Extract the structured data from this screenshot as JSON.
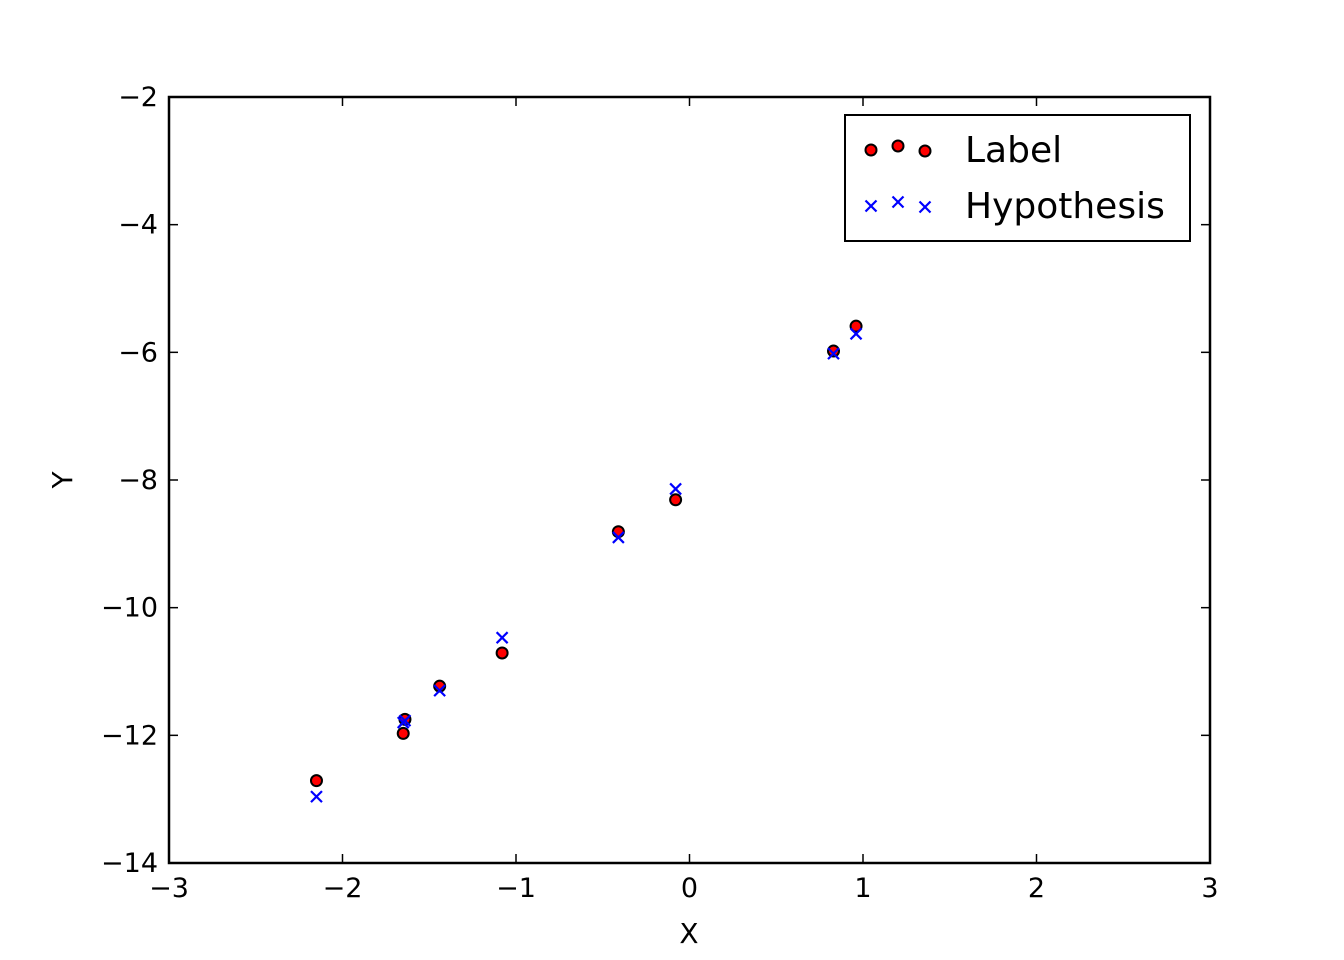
{
  "chart_data": {
    "type": "scatter",
    "xlabel": "X",
    "ylabel": "Y",
    "xlim": [
      -3,
      3
    ],
    "ylim": [
      -14,
      -2
    ],
    "xticks": [
      -3,
      -2,
      -1,
      0,
      1,
      2,
      3
    ],
    "yticks": [
      -14,
      -12,
      -10,
      -8,
      -6,
      -4,
      -2
    ],
    "xtick_labels": [
      "−3",
      "−2",
      "−1",
      "0",
      "1",
      "2",
      "3"
    ],
    "ytick_labels": [
      "−14",
      "−12",
      "−10",
      "−8",
      "−6",
      "−4",
      "−2"
    ],
    "grid": false,
    "legend_position": "top-right",
    "series": [
      {
        "name": "Label",
        "marker": "circle",
        "color": "#ff0000",
        "edge_color": "#000000",
        "x": [
          -2.15,
          -1.65,
          -1.64,
          -1.44,
          -1.08,
          -0.41,
          -0.08,
          0.83,
          0.96
        ],
        "y": [
          -12.71,
          -11.97,
          -11.75,
          -11.23,
          -10.71,
          -8.81,
          -8.31,
          -5.98,
          -5.59
        ]
      },
      {
        "name": "Hypothesis",
        "marker": "x",
        "color": "#0000ff",
        "x": [
          -2.15,
          -1.65,
          -1.64,
          -1.44,
          -1.08,
          -0.41,
          -0.08,
          0.83,
          0.96
        ],
        "y": [
          -12.96,
          -11.8,
          -11.77,
          -11.3,
          -10.47,
          -8.9,
          -8.14,
          -6.02,
          -5.71
        ]
      }
    ]
  }
}
